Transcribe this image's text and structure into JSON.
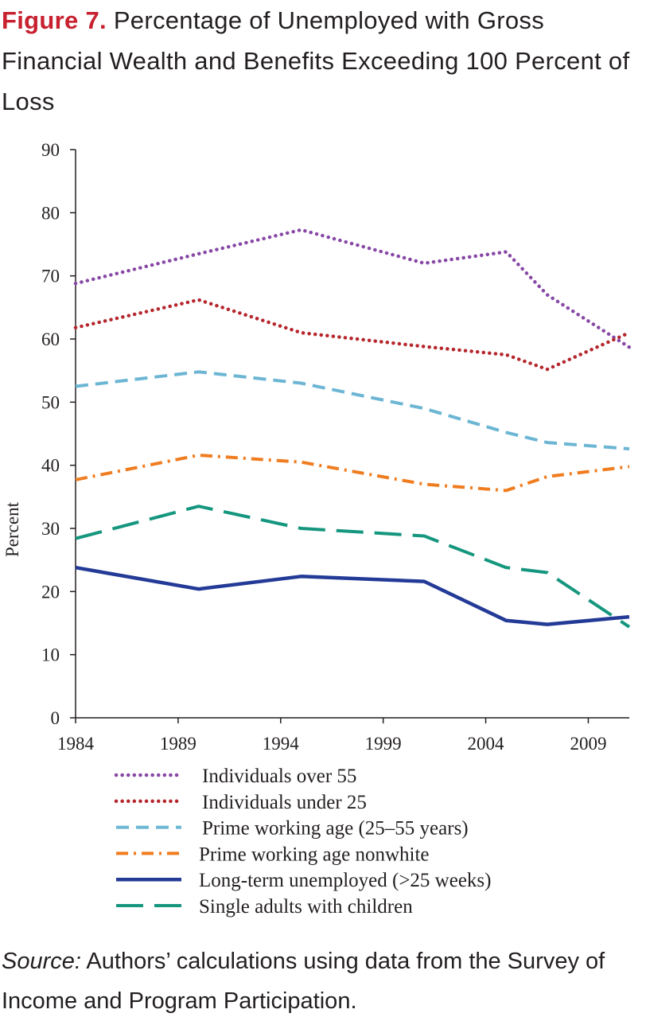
{
  "figure": {
    "label": "Figure 7.",
    "title": "Percentage of Unemployed with Gross Financial Wealth and Benefits Exceeding 100 Percent of Loss"
  },
  "source": {
    "label": "Source:",
    "text": "Authors’ calculations using data from the Survey of Income and Program Participation."
  },
  "chart_data": {
    "type": "line",
    "title": "Percentage of Unemployed with Gross Financial Wealth and Benefits Exceeding 100 Percent of Loss",
    "xlabel": "",
    "ylabel": "Percent",
    "xlim": [
      1984,
      2011
    ],
    "ylim": [
      0,
      90
    ],
    "xticks": [
      "1984",
      "1989",
      "1994",
      "1999",
      "2004",
      "2009"
    ],
    "yticks": [
      "0",
      "10",
      "20",
      "30",
      "40",
      "50",
      "60",
      "70",
      "80",
      "90"
    ],
    "grid": false,
    "legend_position": "bottom",
    "series": [
      {
        "name": "Individuals over 55",
        "color": "#8748a6",
        "style": "dotted",
        "x": [
          1984,
          1990,
          1995,
          2001,
          2005,
          2007,
          2011
        ],
        "y": [
          68.8,
          73.5,
          77.3,
          72,
          73.8,
          67,
          58.7
        ]
      },
      {
        "name": "Individuals under 25",
        "color": "#b5272d",
        "style": "dotted",
        "x": [
          1984,
          1990,
          1995,
          2001,
          2005,
          2007,
          2011
        ],
        "y": [
          61.8,
          66.2,
          61,
          58.8,
          57.5,
          55.2,
          61
        ]
      },
      {
        "name": "Prime working age (25–55 years)",
        "color": "#6cb6d4",
        "style": "dashed",
        "x": [
          1984,
          1990,
          1995,
          2001,
          2005,
          2007,
          2011
        ],
        "y": [
          52.5,
          54.8,
          53,
          49,
          45.2,
          43.6,
          42.6
        ]
      },
      {
        "name": "Prime working age nonwhite",
        "color": "#f07c20",
        "style": "dashdot",
        "x": [
          1984,
          1990,
          1995,
          2001,
          2005,
          2007,
          2011
        ],
        "y": [
          37.7,
          41.6,
          40.5,
          37,
          36,
          38.2,
          39.8
        ]
      },
      {
        "name": "Long-term unemployed (>25 weeks)",
        "color": "#243a97",
        "style": "solid",
        "x": [
          1984,
          1990,
          1995,
          2001,
          2005,
          2007,
          2011
        ],
        "y": [
          23.8,
          20.4,
          22.4,
          21.6,
          15.4,
          14.8,
          16
        ]
      },
      {
        "name": "Single adults with children",
        "color": "#15967e",
        "style": "longdash",
        "x": [
          1984,
          1990,
          1995,
          2001,
          2005,
          2007,
          2011
        ],
        "y": [
          28.4,
          33.5,
          30,
          28.8,
          23.8,
          23,
          14.4
        ]
      }
    ]
  }
}
